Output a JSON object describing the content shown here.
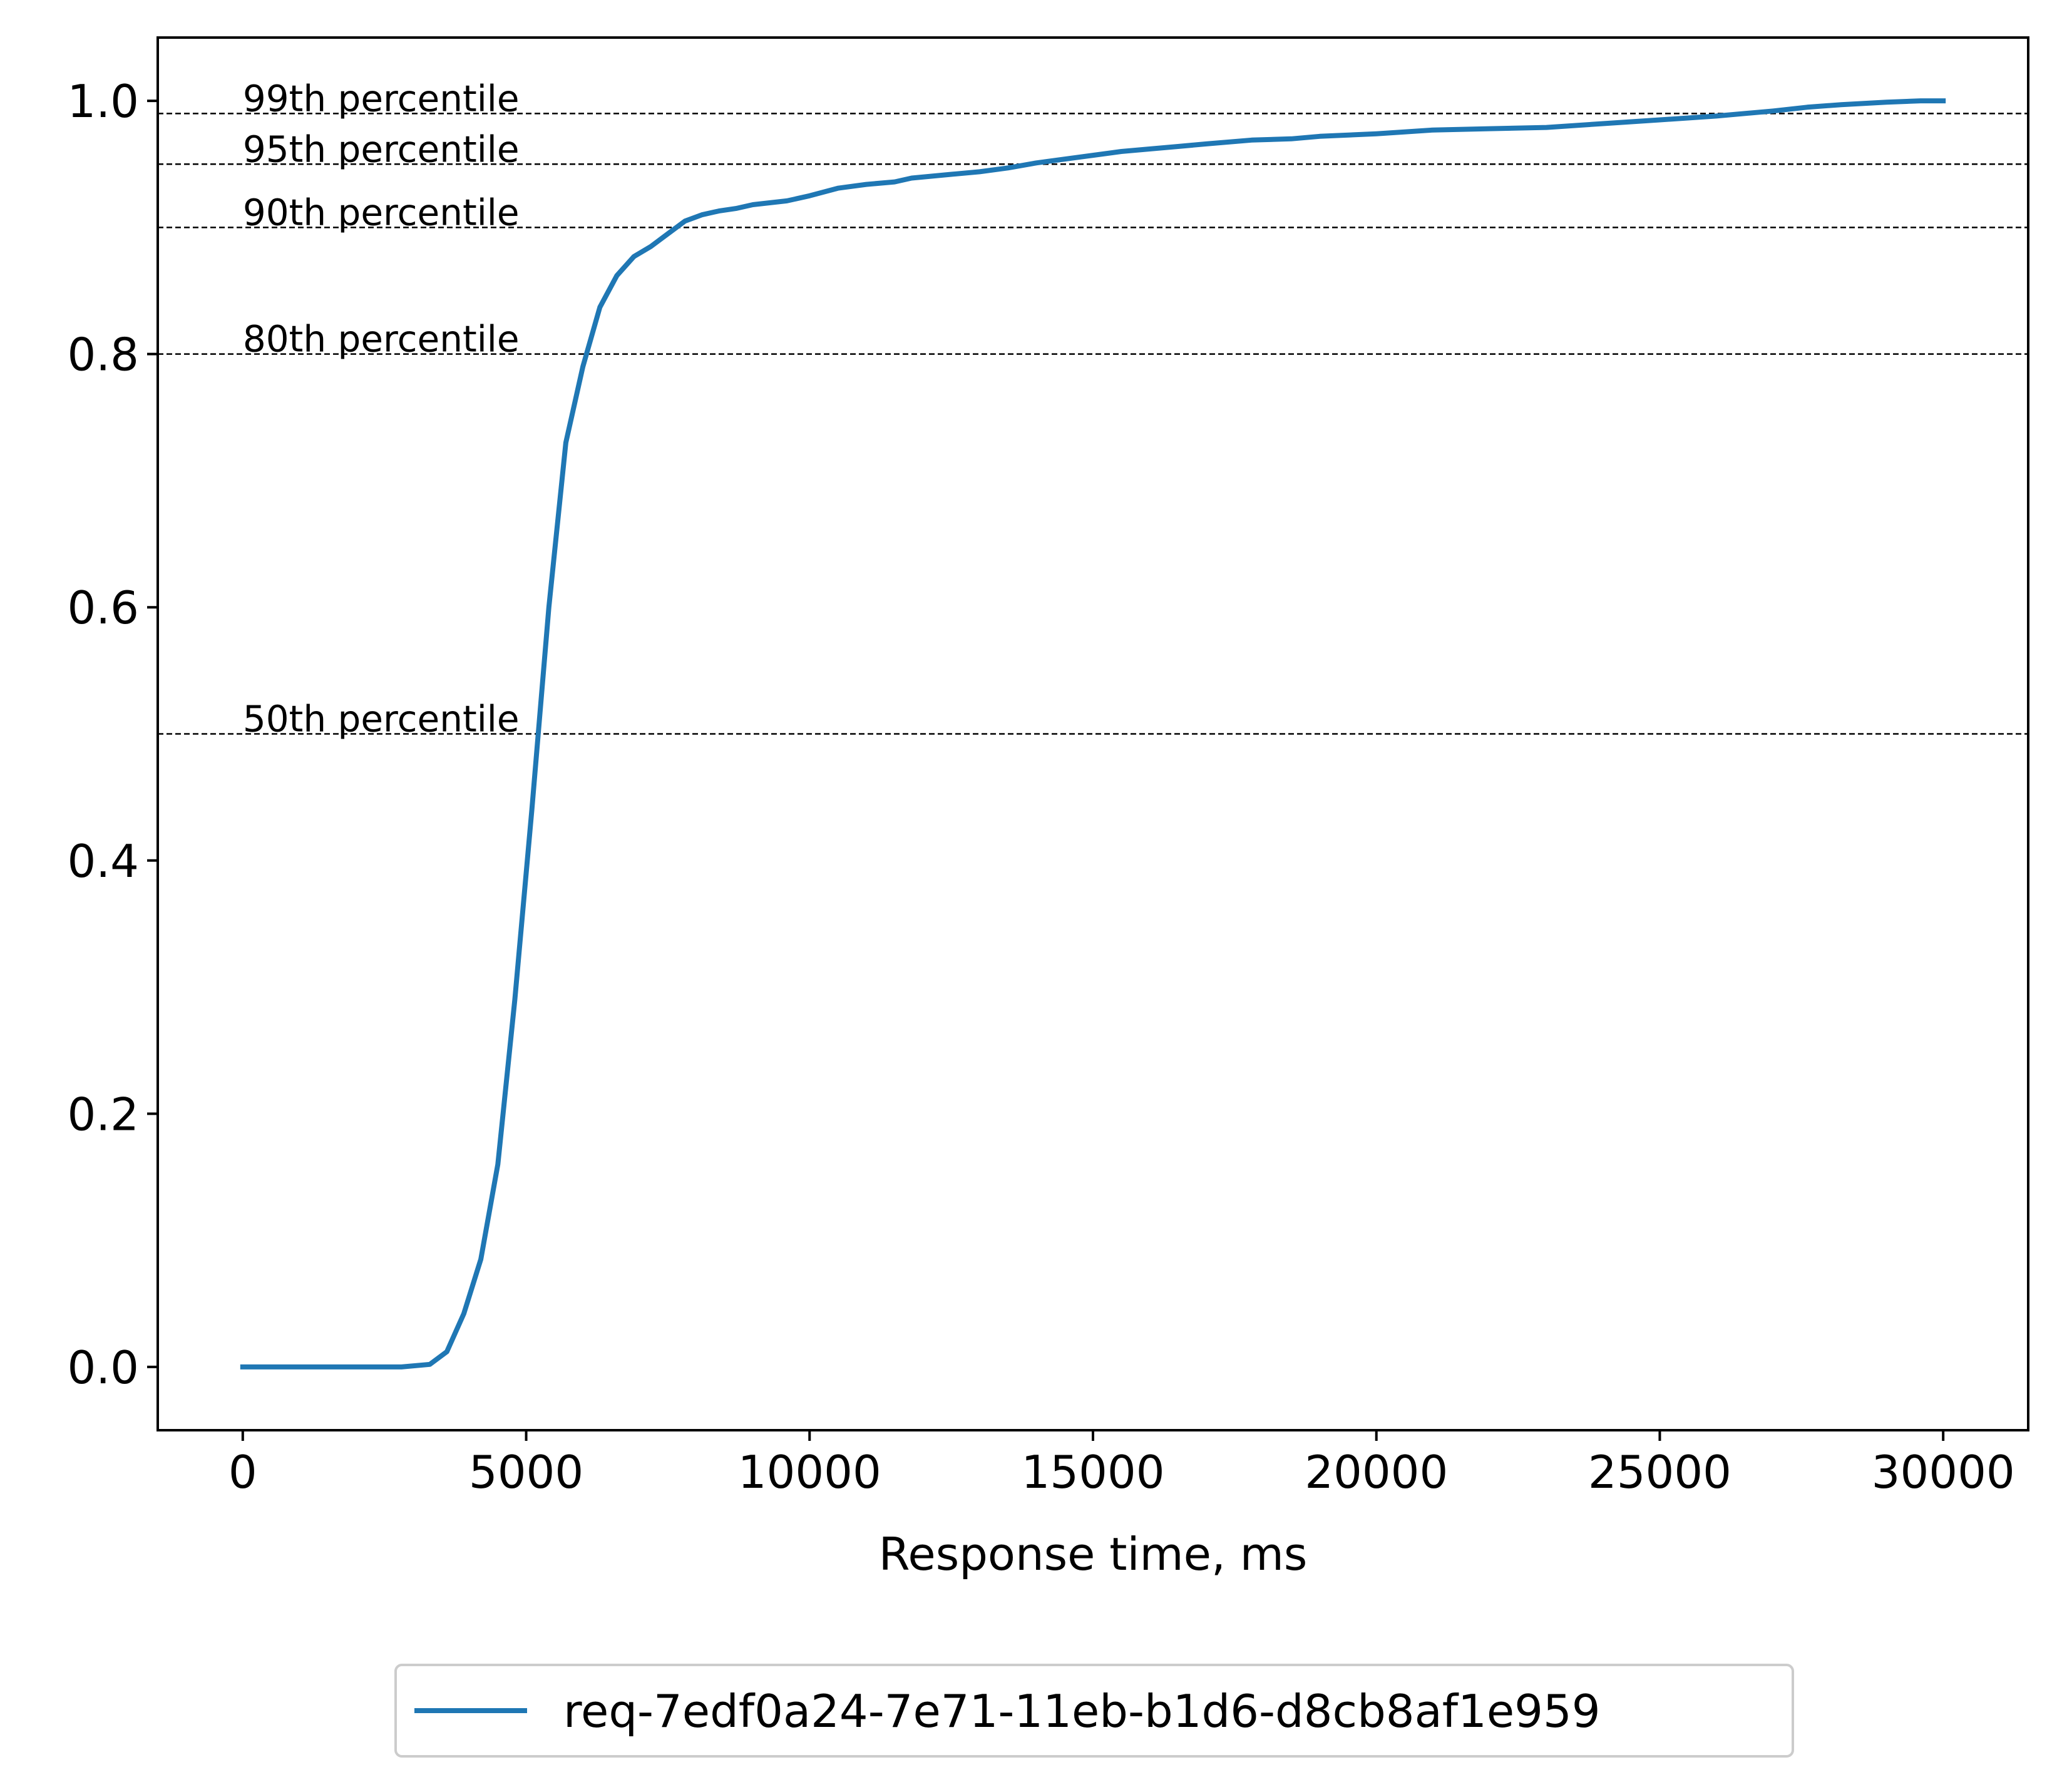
{
  "chart_data": {
    "type": "line",
    "title": "",
    "xlabel": "Response time, ms",
    "ylabel": "",
    "xlim": [
      -1500,
      31500
    ],
    "ylim": [
      -0.05,
      1.05
    ],
    "xticks": [
      0,
      5000,
      10000,
      15000,
      20000,
      25000,
      30000
    ],
    "xtick_labels": [
      "0",
      "5000",
      "10000",
      "15000",
      "20000",
      "25000",
      "30000"
    ],
    "yticks": [
      0.0,
      0.2,
      0.4,
      0.6,
      0.8,
      1.0
    ],
    "ytick_labels": [
      "0.0",
      "0.2",
      "0.4",
      "0.6",
      "0.8",
      "1.0"
    ],
    "grid": false,
    "legend_position": "below-center",
    "series": [
      {
        "name": "req-7edf0a24-7e71-11eb-b1d6-d8cb8af1e959",
        "color": "#1f77b4",
        "x": [
          0,
          2800,
          3300,
          3600,
          3900,
          4200,
          4500,
          4800,
          5100,
          5400,
          5700,
          6000,
          6300,
          6600,
          6900,
          7200,
          7500,
          7800,
          8100,
          8400,
          8700,
          9000,
          9600,
          10000,
          10500,
          11000,
          11500,
          11800,
          12500,
          13000,
          13500,
          14000,
          15000,
          15500,
          16000,
          16500,
          17000,
          17800,
          18500,
          19000,
          20000,
          21000,
          22000,
          23000,
          24000,
          25000,
          26000,
          27000,
          27600,
          28200,
          29000,
          29600,
          30000
        ],
        "y": [
          0.0,
          0.0,
          0.002,
          0.012,
          0.042,
          0.085,
          0.16,
          0.29,
          0.44,
          0.6,
          0.73,
          0.79,
          0.837,
          0.862,
          0.877,
          0.885,
          0.895,
          0.905,
          0.91,
          0.913,
          0.915,
          0.918,
          0.921,
          0.925,
          0.931,
          0.934,
          0.936,
          0.939,
          0.942,
          0.944,
          0.947,
          0.951,
          0.957,
          0.96,
          0.962,
          0.964,
          0.966,
          0.969,
          0.97,
          0.972,
          0.974,
          0.977,
          0.978,
          0.979,
          0.982,
          0.985,
          0.988,
          0.992,
          0.995,
          0.997,
          0.999,
          1.0,
          1.0
        ]
      }
    ],
    "annotations": [
      {
        "text": "99th percentile",
        "y": 0.99
      },
      {
        "text": "95th percentile",
        "y": 0.95
      },
      {
        "text": "90th percentile",
        "y": 0.9
      },
      {
        "text": "80th percentile",
        "y": 0.8
      },
      {
        "text": "50th percentile",
        "y": 0.5
      }
    ]
  }
}
